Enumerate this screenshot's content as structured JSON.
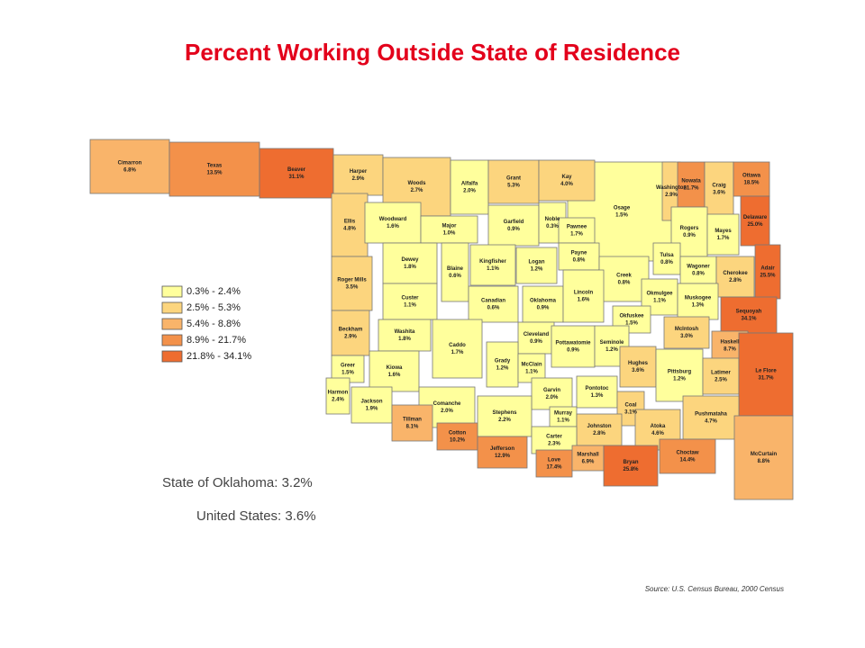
{
  "title": "Percent Working Outside State of Residence",
  "legend": [
    {
      "min": 0.3,
      "max": 2.4,
      "label": "0.3% - 2.4%",
      "color": "#ffff9c"
    },
    {
      "min": 2.5,
      "max": 5.3,
      "label": "2.5% - 5.3%",
      "color": "#fcd57e"
    },
    {
      "min": 5.4,
      "max": 8.8,
      "label": "5.4% - 8.8%",
      "color": "#f9b46a"
    },
    {
      "min": 8.9,
      "max": 21.7,
      "label": "8.9% - 21.7%",
      "color": "#f3914a"
    },
    {
      "min": 21.8,
      "max": 34.1,
      "label": "21.8% - 34.1%",
      "color": "#ee6d30"
    }
  ],
  "counties": [
    {
      "name": "Osage",
      "value": 1.5,
      "label": "1.5%"
    },
    {
      "name": "Cimarron",
      "value": 6.8,
      "label": "6.8%"
    },
    {
      "name": "Texas",
      "value": 13.5,
      "label": "13.5%"
    },
    {
      "name": "Beaver",
      "value": 31.1,
      "label": "31.1%"
    },
    {
      "name": "Harper",
      "value": 2.9,
      "label": "2.9%"
    },
    {
      "name": "Woods",
      "value": 2.7,
      "label": "2.7%"
    },
    {
      "name": "Alfalfa",
      "value": 2.0,
      "label": "2.0%"
    },
    {
      "name": "Grant",
      "value": 5.3,
      "label": "5.3%"
    },
    {
      "name": "Kay",
      "value": 4.0,
      "label": "4.0%"
    },
    {
      "name": "Washington",
      "value": 2.9,
      "label": "2.9%"
    },
    {
      "name": "Nowata",
      "value": 21.7,
      "label": "21.7%"
    },
    {
      "name": "Craig",
      "value": 3.6,
      "label": "3.6%"
    },
    {
      "name": "Ottawa",
      "value": 18.5,
      "label": "18.5%"
    },
    {
      "name": "Ellis",
      "value": 4.8,
      "label": "4.8%"
    },
    {
      "name": "Woodward",
      "value": 1.6,
      "label": "1.6%"
    },
    {
      "name": "Major",
      "value": 1.0,
      "label": "1.0%"
    },
    {
      "name": "Garfield",
      "value": 0.9,
      "label": "0.9%"
    },
    {
      "name": "Noble",
      "value": 0.3,
      "label": "0.3%"
    },
    {
      "name": "Pawnee",
      "value": 1.7,
      "label": "1.7%"
    },
    {
      "name": "Rogers",
      "value": 0.9,
      "label": "0.9%"
    },
    {
      "name": "Mayes",
      "value": 1.7,
      "label": "1.7%"
    },
    {
      "name": "Delaware",
      "value": 25.0,
      "label": "25.0%"
    },
    {
      "name": "Roger Mills",
      "value": 3.5,
      "label": "3.5%"
    },
    {
      "name": "Dewey",
      "value": 1.8,
      "label": "1.8%"
    },
    {
      "name": "Blaine",
      "value": 0.6,
      "label": "0.6%"
    },
    {
      "name": "Kingfisher",
      "value": 1.1,
      "label": "1.1%"
    },
    {
      "name": "Logan",
      "value": 1.2,
      "label": "1.2%"
    },
    {
      "name": "Payne",
      "value": 0.8,
      "label": "0.8%"
    },
    {
      "name": "Creek",
      "value": 0.8,
      "label": "0.8%"
    },
    {
      "name": "Tulsa",
      "value": 0.8,
      "label": "0.8%"
    },
    {
      "name": "Wagoner",
      "value": 0.8,
      "label": "0.8%"
    },
    {
      "name": "Cherokee",
      "value": 2.8,
      "label": "2.8%"
    },
    {
      "name": "Adair",
      "value": 25.5,
      "label": "25.5%"
    },
    {
      "name": "Custer",
      "value": 1.1,
      "label": "1.1%"
    },
    {
      "name": "Canadian",
      "value": 0.6,
      "label": "0.6%"
    },
    {
      "name": "Oklahoma",
      "value": 0.9,
      "label": "0.9%"
    },
    {
      "name": "Lincoln",
      "value": 1.6,
      "label": "1.6%"
    },
    {
      "name": "Okmulgee",
      "value": 1.1,
      "label": "1.1%"
    },
    {
      "name": "Muskogee",
      "value": 1.3,
      "label": "1.3%"
    },
    {
      "name": "Beckham",
      "value": 2.9,
      "label": "2.9%"
    },
    {
      "name": "Washita",
      "value": 1.8,
      "label": "1.8%"
    },
    {
      "name": "Caddo",
      "value": 1.7,
      "label": "1.7%"
    },
    {
      "name": "Okfuskee",
      "value": 1.5,
      "label": "1.5%"
    },
    {
      "name": "Sequoyah",
      "value": 34.1,
      "label": "34.1%"
    },
    {
      "name": "McIntosh",
      "value": 3.0,
      "label": "3.0%"
    },
    {
      "name": "Cleveland",
      "value": 0.9,
      "label": "0.9%"
    },
    {
      "name": "Grady",
      "value": 1.2,
      "label": "1.2%"
    },
    {
      "name": "McClain",
      "value": 1.1,
      "label": "1.1%"
    },
    {
      "name": "Pottawatomie",
      "value": 0.9,
      "label": "0.9%"
    },
    {
      "name": "Seminole",
      "value": 1.2,
      "label": "1.2%"
    },
    {
      "name": "Hughes",
      "value": 3.6,
      "label": "3.6%"
    },
    {
      "name": "Haskell",
      "value": 8.7,
      "label": "8.7%"
    },
    {
      "name": "Greer",
      "value": 1.5,
      "label": "1.5%"
    },
    {
      "name": "Kiowa",
      "value": 1.6,
      "label": "1.6%"
    },
    {
      "name": "Harmon",
      "value": 2.4,
      "label": "2.4%"
    },
    {
      "name": "Jackson",
      "value": 1.9,
      "label": "1.9%"
    },
    {
      "name": "Pittsburg",
      "value": 1.2,
      "label": "1.2%"
    },
    {
      "name": "Latimer",
      "value": 2.5,
      "label": "2.5%"
    },
    {
      "name": "Le Flore",
      "value": 31.7,
      "label": "31.7%"
    },
    {
      "name": "Garvin",
      "value": 2.0,
      "label": "2.0%"
    },
    {
      "name": "Pontotoc",
      "value": 1.3,
      "label": "1.3%"
    },
    {
      "name": "Comanche",
      "value": 2.0,
      "label": "2.0%"
    },
    {
      "name": "Coal",
      "value": 3.1,
      "label": "3.1%"
    },
    {
      "name": "Stephens",
      "value": 2.2,
      "label": "2.2%"
    },
    {
      "name": "Murray",
      "value": 1.1,
      "label": "1.1%"
    },
    {
      "name": "Tillman",
      "value": 8.1,
      "label": "8.1%"
    },
    {
      "name": "Cotton",
      "value": 10.2,
      "label": "10.2%"
    },
    {
      "name": "Johnston",
      "value": 2.8,
      "label": "2.8%"
    },
    {
      "name": "Atoka",
      "value": 4.6,
      "label": "4.6%"
    },
    {
      "name": "Pushmataha",
      "value": 4.7,
      "label": "4.7%"
    },
    {
      "name": "McCurtain",
      "value": 8.8,
      "label": "8.8%"
    },
    {
      "name": "Carter",
      "value": 2.3,
      "label": "2.3%"
    },
    {
      "name": "Jefferson",
      "value": 12.9,
      "label": "12.9%"
    },
    {
      "name": "Love",
      "value": 17.4,
      "label": "17.4%"
    },
    {
      "name": "Marshall",
      "value": 6.9,
      "label": "6.9%"
    },
    {
      "name": "Bryan",
      "value": 25.8,
      "label": "25.8%"
    },
    {
      "name": "Choctaw",
      "value": 14.4,
      "label": "14.4%"
    }
  ],
  "state_summary": "State of Oklahoma: 3.2%",
  "us_summary": "United States: 3.6%",
  "source": "Source: U.S. Census Bureau, 2000 Census"
}
